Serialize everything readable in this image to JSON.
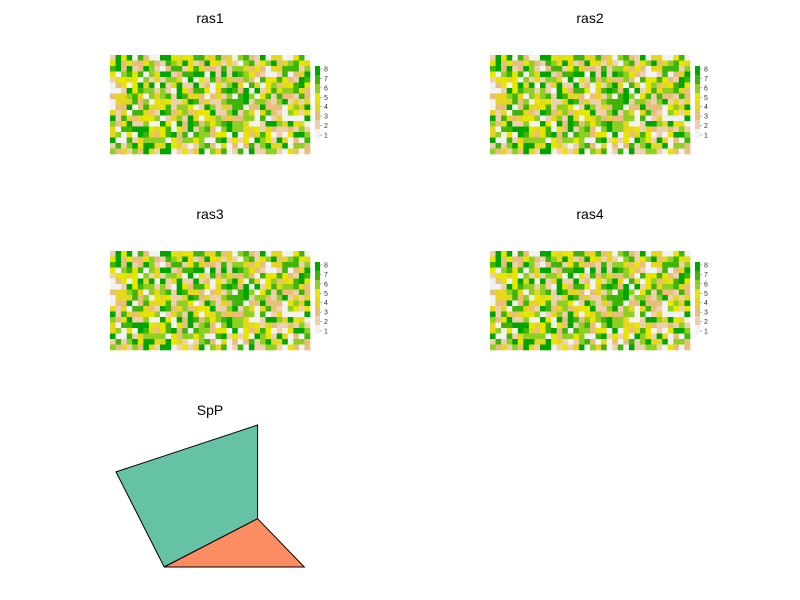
{
  "palette": {
    "1": "#F2F2F2",
    "2": "#EFD0AE",
    "3": "#E7BE7C",
    "4": "#E6D61F",
    "5": "#E6E600",
    "6": "#8ED021",
    "7": "#3FB40B",
    "8": "#00A600"
  },
  "chart_data": [
    {
      "type": "heatmap",
      "title": "ras1",
      "rows": 18,
      "cols": 36,
      "value_range": [
        1,
        8
      ],
      "legend_ticks": [
        "8",
        "7",
        "6",
        "5",
        "4",
        "3",
        "2",
        "1"
      ],
      "legend_position": "right",
      "seed": 7
    },
    {
      "type": "heatmap",
      "title": "ras2",
      "rows": 18,
      "cols": 36,
      "value_range": [
        1,
        8
      ],
      "legend_ticks": [
        "8",
        "7",
        "6",
        "5",
        "4",
        "3",
        "2",
        "1"
      ],
      "legend_position": "right",
      "seed": 7
    },
    {
      "type": "heatmap",
      "title": "ras3",
      "rows": 18,
      "cols": 36,
      "value_range": [
        1,
        8
      ],
      "legend_ticks": [
        "8",
        "7",
        "6",
        "5",
        "4",
        "3",
        "2",
        "1"
      ],
      "legend_position": "right",
      "seed": 7
    },
    {
      "type": "heatmap",
      "title": "ras4",
      "rows": 18,
      "cols": 36,
      "value_range": [
        1,
        8
      ],
      "legend_ticks": [
        "8",
        "7",
        "6",
        "5",
        "4",
        "3",
        "2",
        "1"
      ],
      "legend_position": "right",
      "seed": 7
    },
    {
      "type": "polygons",
      "title": "SpP",
      "polygons": [
        {
          "name": "polygon-1",
          "fill": "#66C2A5",
          "points": [
            [
              0,
              0.67
            ],
            [
              0.97,
              1
            ],
            [
              0.97,
              0.34
            ],
            [
              0.33,
              0
            ]
          ]
        },
        {
          "name": "polygon-2",
          "fill": "#FC8D62",
          "points": [
            [
              0.33,
              0
            ],
            [
              0.97,
              0.34
            ],
            [
              1.29,
              0
            ]
          ]
        }
      ]
    }
  ]
}
